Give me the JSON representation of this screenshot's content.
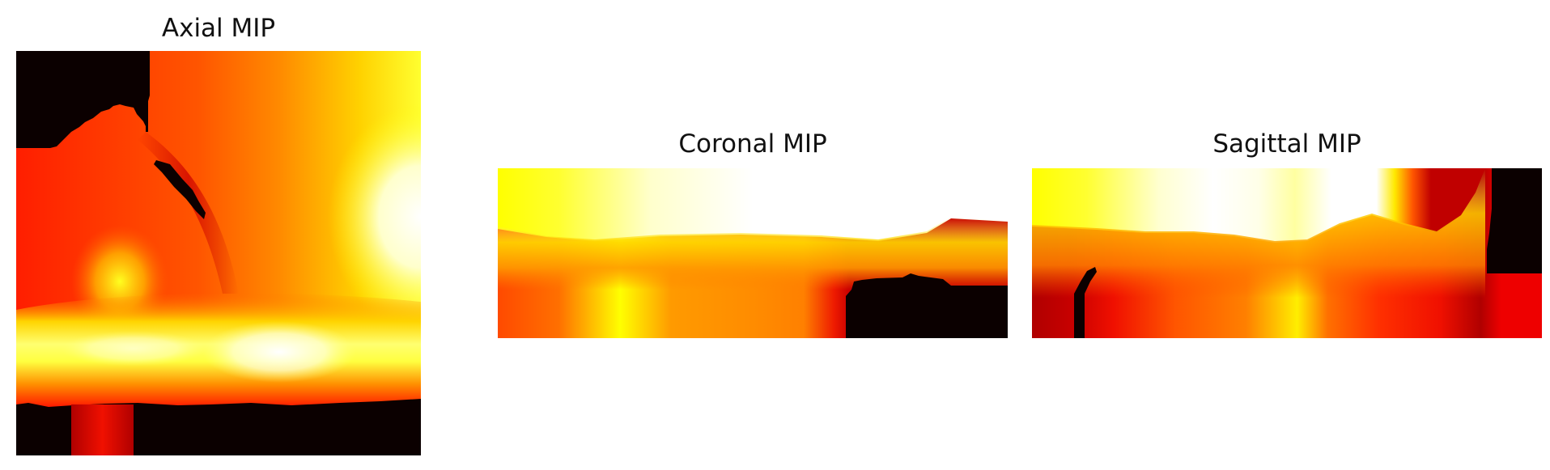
{
  "panels": [
    {
      "id": "axial",
      "title": "Axial MIP"
    },
    {
      "id": "coronal",
      "title": "Coronal MIP"
    },
    {
      "id": "sagittal",
      "title": "Sagittal MIP"
    }
  ],
  "colormap": "hot",
  "colors": {
    "background": "#0b0000",
    "dark_red": "#b00000",
    "red": "#e60000",
    "orange_red": "#ff4400",
    "orange": "#ff9000",
    "yellow": "#ffff00",
    "white": "#ffffff"
  }
}
